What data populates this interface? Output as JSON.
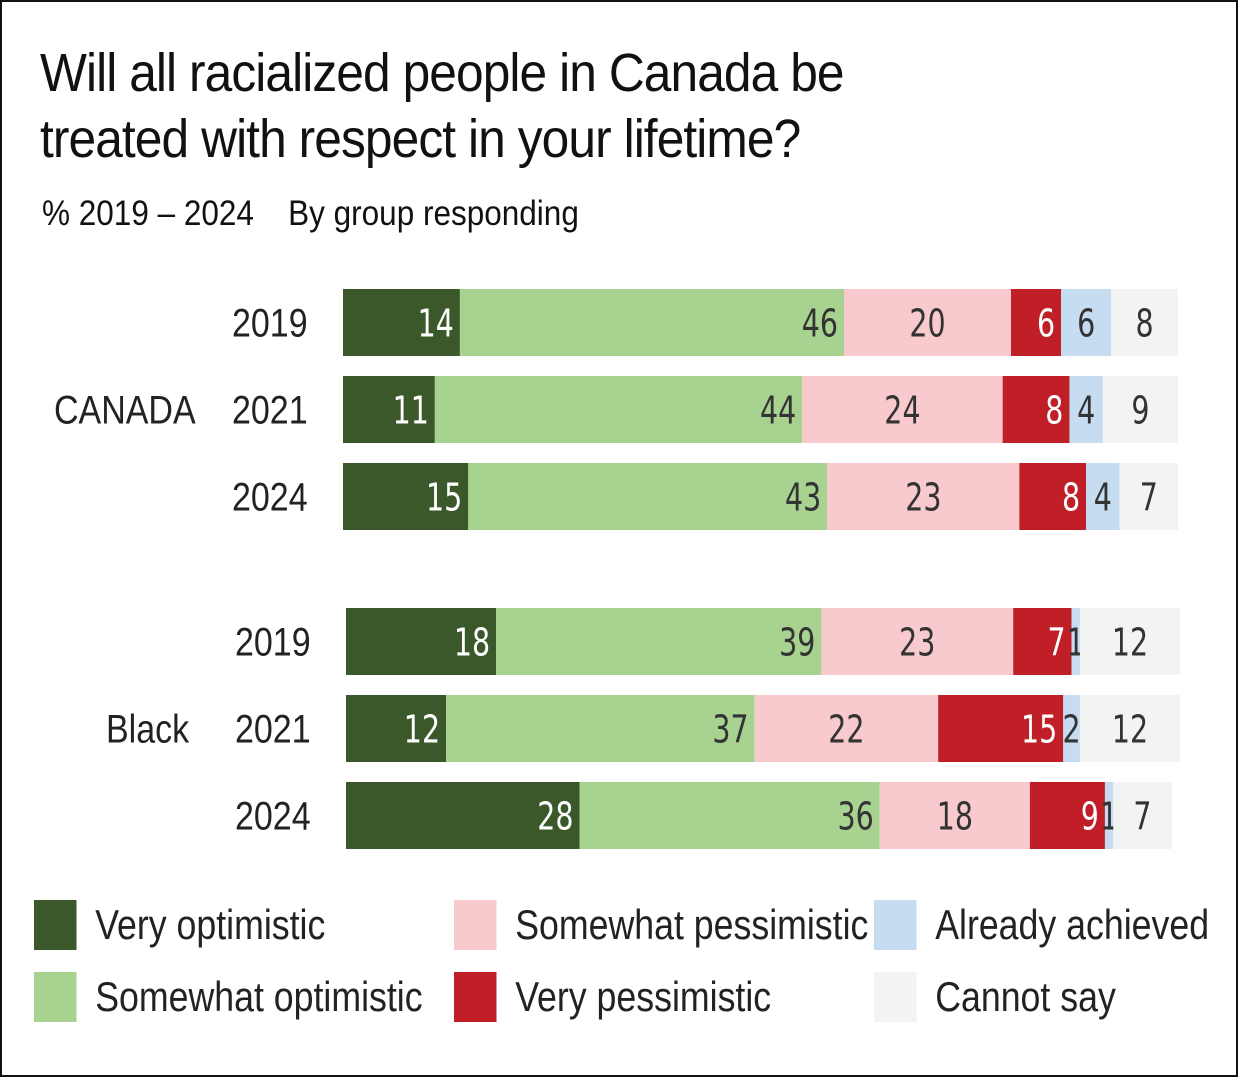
{
  "title": "Will all racialized people in Canada be treated with respect in your lifetime?",
  "subtitle": {
    "left": "% 2019 – 2024",
    "right": "By group responding"
  },
  "chart_data": {
    "type": "bar",
    "orientation": "horizontal",
    "stacked": true,
    "title": "Will all racialized people in Canada be treated with respect in your lifetime?",
    "xlim": [
      0,
      100
    ],
    "groups": [
      {
        "name": "CANADA",
        "rows": [
          {
            "year": "2019",
            "values": [
              14,
              46,
              20,
              6,
              6,
              8
            ]
          },
          {
            "year": "2021",
            "values": [
              11,
              44,
              24,
              8,
              4,
              9
            ]
          },
          {
            "year": "2024",
            "values": [
              15,
              43,
              23,
              8,
              4,
              7
            ]
          }
        ]
      },
      {
        "name": "Black",
        "rows": [
          {
            "year": "2019",
            "values": [
              18,
              39,
              23,
              7,
              1,
              12
            ]
          },
          {
            "year": "2021",
            "values": [
              12,
              37,
              22,
              15,
              2,
              12
            ]
          },
          {
            "year": "2024",
            "values": [
              28,
              36,
              18,
              9,
              1,
              7
            ]
          }
        ]
      }
    ],
    "series": [
      {
        "name": "Very optimistic",
        "color": "#3a5829",
        "text_color": "#ffffff"
      },
      {
        "name": "Somewhat optimistic",
        "color": "#a8d28f",
        "text_color": "#333333"
      },
      {
        "name": "Somewhat pessimistic",
        "color": "#f9cacd",
        "text_color": "#333333"
      },
      {
        "name": "Very pessimistic",
        "color": "#c01f27",
        "text_color": "#ffffff"
      },
      {
        "name": "Already achieved",
        "color": "#c5dcf1",
        "text_color": "#333333"
      },
      {
        "name": "Cannot say",
        "color": "#f2f3f3",
        "text_color": "#333333"
      }
    ],
    "legend_position": "bottom"
  }
}
